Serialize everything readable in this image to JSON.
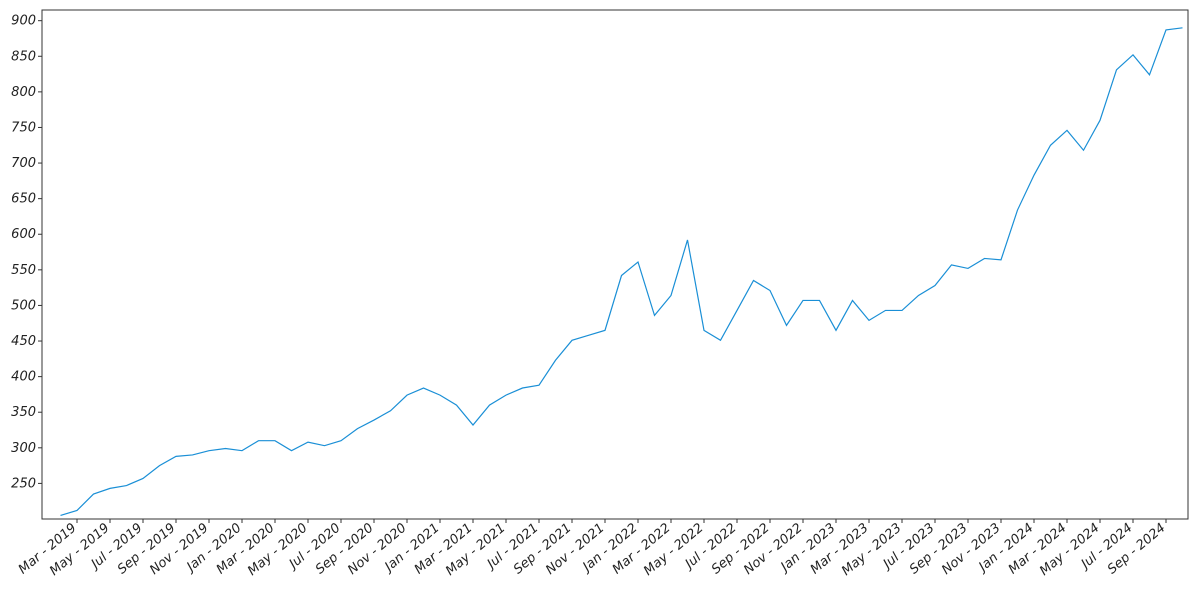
{
  "chart_data": {
    "type": "line",
    "x": [
      "Feb - 2019",
      "Mar - 2019",
      "Apr - 2019",
      "May - 2019",
      "Jun - 2019",
      "Jul - 2019",
      "Aug - 2019",
      "Sep - 2019",
      "Oct - 2019",
      "Nov - 2019",
      "Dec - 2019",
      "Jan - 2020",
      "Feb - 2020",
      "Mar - 2020",
      "Apr - 2020",
      "May - 2020",
      "Jun - 2020",
      "Jul - 2020",
      "Aug - 2020",
      "Sep - 2020",
      "Oct - 2020",
      "Nov - 2020",
      "Dec - 2020",
      "Jan - 2021",
      "Feb - 2021",
      "Mar - 2021",
      "Apr - 2021",
      "May - 2021",
      "Jun - 2021",
      "Jul - 2021",
      "Aug - 2021",
      "Sep - 2021",
      "Oct - 2021",
      "Nov - 2021",
      "Dec - 2021",
      "Jan - 2022",
      "Feb - 2022",
      "Mar - 2022",
      "Apr - 2022",
      "May - 2022",
      "Jun - 2022",
      "Jul - 2022",
      "Aug - 2022",
      "Sep - 2022",
      "Oct - 2022",
      "Nov - 2022",
      "Dec - 2022",
      "Jan - 2023",
      "Feb - 2023",
      "Mar - 2023",
      "Apr - 2023",
      "May - 2023",
      "Jun - 2023",
      "Jul - 2023",
      "Aug - 2023",
      "Sep - 2023",
      "Oct - 2023",
      "Nov - 2023",
      "Dec - 2023",
      "Jan - 2024",
      "Feb - 2024",
      "Mar - 2024",
      "Apr - 2024",
      "May - 2024",
      "Jun - 2024",
      "Jul - 2024",
      "Aug - 2024",
      "Sep - 2024",
      "Oct - 2024"
    ],
    "series": [
      {
        "color": "#1a8fd6",
        "values": [
          205,
          212,
          235,
          243,
          247,
          257,
          275,
          288,
          290,
          296,
          299,
          296,
          310,
          310,
          296,
          308,
          303,
          310,
          327,
          339,
          352,
          374,
          384,
          374,
          360,
          332,
          360,
          374,
          384,
          388,
          423,
          451,
          458,
          465,
          542,
          561,
          486,
          514,
          592,
          465,
          451,
          493,
          535,
          521,
          472,
          507,
          507,
          465,
          507,
          479,
          493,
          493,
          514,
          528,
          557,
          552,
          566,
          564,
          634,
          683,
          725,
          746,
          718,
          760,
          831,
          852,
          824,
          887,
          890
        ]
      }
    ],
    "xticks": [
      "Mar - 2019",
      "May - 2019",
      "Jul - 2019",
      "Sep - 2019",
      "Nov - 2019",
      "Jan - 2020",
      "Mar - 2020",
      "May - 2020",
      "Jul - 2020",
      "Sep - 2020",
      "Nov - 2020",
      "Jan - 2021",
      "Mar - 2021",
      "May - 2021",
      "Jul - 2021",
      "Sep - 2021",
      "Nov - 2021",
      "Jan - 2022",
      "Mar - 2022",
      "May - 2022",
      "Jul - 2022",
      "Sep - 2022",
      "Nov - 2022",
      "Jan - 2023",
      "Mar - 2023",
      "May - 2023",
      "Jul - 2023",
      "Sep - 2023",
      "Nov - 2023",
      "Jan - 2024",
      "Mar - 2024",
      "May - 2024",
      "Jul - 2024",
      "Sep - 2024"
    ],
    "ylim": [
      200,
      915
    ],
    "yticks": [
      250,
      300,
      350,
      400,
      450,
      500,
      550,
      600,
      650,
      700,
      750,
      800,
      850,
      900
    ]
  }
}
